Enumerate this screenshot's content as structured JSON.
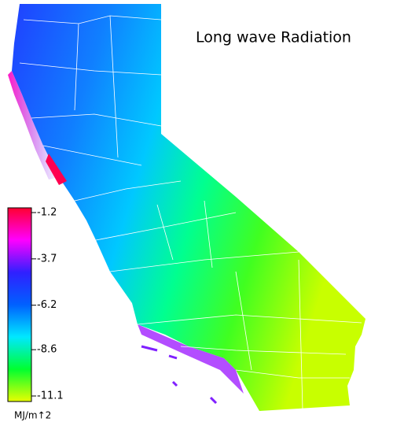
{
  "title": "Long wave Radiation",
  "colorbar": {
    "ticks": [
      -1.2,
      -3.7,
      -6.2,
      -8.6,
      -11.1
    ],
    "colors": [
      "#ff0030",
      "#ff00ff",
      "#3020ff",
      "#0060ff",
      "#00e8ff",
      "#00ff30",
      "#e8ff00"
    ],
    "unit": "MJ/m↑2"
  }
}
